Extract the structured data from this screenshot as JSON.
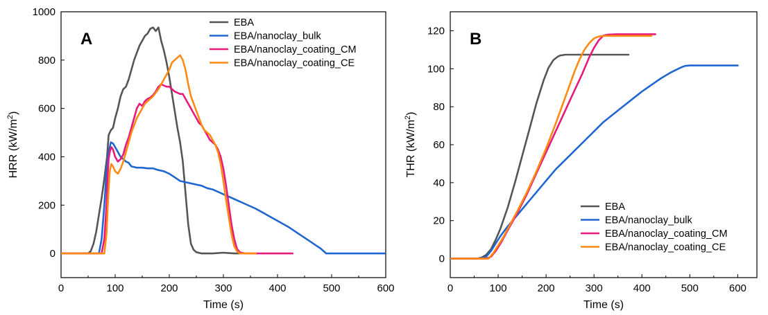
{
  "chart_data": [
    {
      "panel": "A",
      "type": "line",
      "xlabel": "Time (s)",
      "ylabel": "HRR (kW/m2)",
      "ylabel_main": "HRR (kW/m",
      "ylabel_sup": "2",
      "ylabel_end": ")",
      "xlim": [
        0,
        600
      ],
      "ylim": [
        -100,
        1000
      ],
      "xticks": [
        0,
        100,
        200,
        300,
        400,
        500,
        600
      ],
      "yticks": [
        0,
        200,
        400,
        600,
        800,
        1000
      ],
      "legend_position": "top-right",
      "series": [
        {
          "name": "EBA",
          "color": "#555555",
          "x": [
            0,
            50,
            55,
            60,
            65,
            70,
            75,
            80,
            85,
            88,
            92,
            96,
            100,
            105,
            110,
            115,
            120,
            125,
            130,
            135,
            140,
            145,
            150,
            155,
            160,
            165,
            170,
            175,
            180,
            185,
            190,
            195,
            200,
            205,
            210,
            215,
            220,
            225,
            230,
            235,
            240,
            245,
            250,
            260,
            280,
            300,
            320,
            330
          ],
          "y": [
            0,
            0,
            10,
            40,
            90,
            160,
            230,
            310,
            400,
            490,
            510,
            520,
            560,
            600,
            650,
            680,
            690,
            720,
            760,
            800,
            830,
            860,
            880,
            900,
            910,
            930,
            935,
            920,
            935,
            880,
            840,
            790,
            730,
            660,
            590,
            520,
            460,
            380,
            250,
            120,
            40,
            15,
            5,
            0,
            0,
            3,
            0,
            0
          ]
        },
        {
          "name": "EBA/nanoclay_bulk",
          "color": "#1f66d1",
          "x": [
            0,
            70,
            75,
            80,
            84,
            88,
            92,
            96,
            100,
            105,
            110,
            115,
            120,
            125,
            130,
            140,
            150,
            160,
            170,
            180,
            190,
            200,
            210,
            220,
            230,
            240,
            250,
            260,
            270,
            280,
            290,
            300,
            320,
            340,
            360,
            380,
            400,
            420,
            440,
            460,
            470,
            480,
            485,
            490,
            495,
            500,
            520,
            560,
            600
          ],
          "y": [
            0,
            0,
            60,
            200,
            340,
            420,
            460,
            455,
            440,
            420,
            400,
            390,
            380,
            375,
            360,
            355,
            355,
            352,
            352,
            345,
            340,
            330,
            315,
            300,
            295,
            290,
            285,
            280,
            270,
            265,
            255,
            245,
            225,
            205,
            185,
            160,
            135,
            110,
            80,
            50,
            35,
            20,
            10,
            0,
            0,
            0,
            0,
            0,
            0
          ]
        },
        {
          "name": "EBA/nanoclay_coating_CM",
          "color": "#e8197d",
          "x": [
            0,
            75,
            80,
            84,
            86,
            88,
            90,
            93,
            96,
            100,
            105,
            110,
            115,
            120,
            125,
            130,
            135,
            140,
            145,
            150,
            155,
            160,
            165,
            170,
            175,
            180,
            185,
            190,
            195,
            200,
            205,
            210,
            215,
            220,
            225,
            230,
            235,
            240,
            245,
            250,
            255,
            260,
            265,
            270,
            275,
            280,
            285,
            290,
            295,
            300,
            305,
            310,
            315,
            320,
            325,
            330,
            340,
            360,
            400,
            428
          ],
          "y": [
            0,
            0,
            60,
            200,
            320,
            390,
            420,
            440,
            430,
            400,
            380,
            390,
            410,
            450,
            480,
            520,
            560,
            600,
            620,
            610,
            630,
            640,
            645,
            655,
            670,
            690,
            700,
            695,
            690,
            690,
            680,
            670,
            665,
            660,
            660,
            640,
            620,
            600,
            580,
            560,
            540,
            530,
            510,
            490,
            470,
            460,
            450,
            430,
            400,
            350,
            280,
            200,
            120,
            60,
            20,
            5,
            0,
            0,
            0,
            0
          ]
        },
        {
          "name": "EBA/nanoclay_coating_CE",
          "color": "#ff8a13",
          "x": [
            0,
            80,
            84,
            87,
            90,
            93,
            96,
            100,
            105,
            110,
            115,
            120,
            125,
            130,
            135,
            140,
            145,
            150,
            155,
            160,
            165,
            170,
            175,
            180,
            185,
            190,
            195,
            200,
            205,
            210,
            215,
            220,
            225,
            230,
            235,
            240,
            245,
            250,
            255,
            260,
            265,
            270,
            275,
            280,
            285,
            290,
            295,
            300,
            305,
            310,
            315,
            320,
            325,
            330,
            340,
            360
          ],
          "y": [
            0,
            0,
            80,
            230,
            340,
            370,
            360,
            340,
            330,
            350,
            380,
            420,
            460,
            500,
            530,
            560,
            580,
            600,
            620,
            630,
            640,
            650,
            665,
            680,
            700,
            720,
            740,
            760,
            790,
            800,
            810,
            820,
            800,
            760,
            700,
            650,
            620,
            590,
            560,
            530,
            510,
            500,
            490,
            470,
            450,
            420,
            370,
            300,
            220,
            150,
            80,
            30,
            10,
            0,
            0,
            0
          ]
        }
      ]
    },
    {
      "panel": "B",
      "type": "line",
      "xlabel": "Time (s)",
      "ylabel": "THR (kW/m2)",
      "ylabel_main": "THR (kW/m",
      "ylabel_sup": "2",
      "ylabel_end": ")",
      "xlim": [
        0,
        640
      ],
      "ylim": [
        -10,
        130
      ],
      "xticks": [
        0,
        100,
        200,
        300,
        400,
        500,
        600
      ],
      "yticks": [
        0,
        20,
        40,
        60,
        80,
        100,
        120
      ],
      "legend_position": "bottom-right",
      "series": [
        {
          "name": "EBA",
          "color": "#555555",
          "x": [
            0,
            55,
            65,
            75,
            85,
            95,
            105,
            120,
            135,
            150,
            165,
            180,
            195,
            205,
            215,
            225,
            230,
            240,
            260,
            300,
            340,
            372
          ],
          "y": [
            0,
            0,
            0.5,
            2,
            5,
            10,
            16,
            27,
            40,
            54,
            68,
            82,
            94,
            100.5,
            104.5,
            106.5,
            107,
            107.4,
            107.4,
            107.4,
            107.4,
            107.4
          ]
        },
        {
          "name": "EBA/nanoclay_bulk",
          "color": "#1f66d1",
          "x": [
            0,
            65,
            75,
            85,
            95,
            105,
            120,
            140,
            160,
            180,
            200,
            220,
            240,
            260,
            280,
            300,
            320,
            340,
            360,
            380,
            400,
            420,
            440,
            460,
            480,
            490,
            500,
            550,
            600
          ],
          "y": [
            0,
            0,
            1,
            4,
            8,
            12,
            17,
            23,
            29,
            35,
            41,
            47,
            52,
            57,
            62,
            67,
            72,
            76,
            80,
            84,
            88,
            91.5,
            95,
            98,
            100.5,
            101.5,
            101.7,
            101.7,
            101.7
          ]
        },
        {
          "name": "EBA/nanoclay_coating_CM",
          "color": "#e8197d",
          "x": [
            0,
            75,
            85,
            95,
            105,
            120,
            140,
            160,
            180,
            200,
            220,
            240,
            260,
            275,
            290,
            300,
            310,
            320,
            330,
            350,
            400,
            428
          ],
          "y": [
            0,
            0,
            1,
            4,
            8,
            15,
            24,
            34,
            45,
            56,
            67,
            78,
            89,
            97,
            106,
            111,
            115,
            117.5,
            118,
            118.2,
            118.2,
            118.2
          ]
        },
        {
          "name": "EBA/nanoclay_coating_CE",
          "color": "#ff8a13",
          "x": [
            0,
            80,
            90,
            100,
            110,
            125,
            140,
            160,
            180,
            200,
            220,
            240,
            260,
            270,
            280,
            290,
            300,
            310,
            320,
            340,
            380,
            420
          ],
          "y": [
            0,
            0,
            3,
            7,
            11,
            18,
            25,
            35,
            46,
            58,
            71,
            85,
            99,
            105,
            110,
            113.5,
            116,
            117,
            117.3,
            117.3,
            117.3,
            117.3
          ]
        }
      ]
    }
  ]
}
